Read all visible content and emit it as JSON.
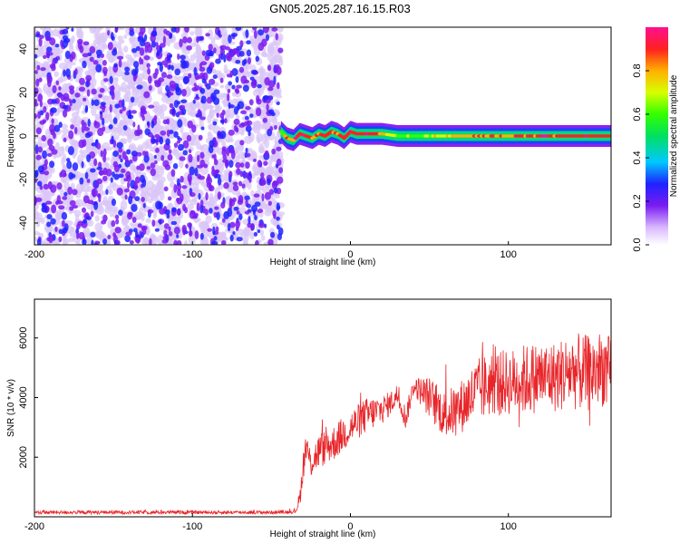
{
  "title": "GN05.2025.287.16.15.R03",
  "chart_data": [
    {
      "type": "heatmap",
      "xlabel": "Height of straight line (km)",
      "ylabel": "Frequency (Hz)",
      "xlim": [
        -200,
        165
      ],
      "ylim": [
        -50,
        50
      ],
      "xticks": [
        "-200",
        "-100",
        "0",
        "100"
      ],
      "yticks": [
        "40",
        "20",
        "0",
        "-20",
        "-40"
      ],
      "colorbar": {
        "label": "Normalized spectral amplitude",
        "range": [
          0.0,
          1.0
        ],
        "ticks": [
          "0.0",
          "0.2",
          "0.4",
          "0.6",
          "0.8"
        ]
      },
      "noise_region_x": [
        -200,
        -44
      ],
      "signal_start_x": -44,
      "signal_track": {
        "x": [
          -44,
          -40,
          -36,
          -32,
          -28,
          -24,
          -20,
          -16,
          -12,
          -8,
          -4,
          0,
          4,
          8,
          12,
          16,
          20,
          30,
          40,
          60,
          80,
          100,
          120,
          140,
          165
        ],
        "freq": [
          2,
          -1,
          -2,
          1,
          0,
          -1,
          1,
          0,
          2,
          1,
          -1,
          2,
          1,
          1,
          1,
          1,
          1,
          0,
          0,
          0,
          0,
          0,
          0,
          0,
          0
        ],
        "amplitude": [
          0.55,
          0.8,
          0.85,
          0.9,
          0.85,
          0.8,
          0.85,
          0.85,
          0.8,
          0.8,
          0.85,
          0.9,
          0.85,
          0.85,
          0.9,
          0.85,
          0.75,
          0.6,
          0.55,
          0.7,
          0.8,
          0.8,
          0.85,
          0.85,
          0.85
        ]
      }
    },
    {
      "type": "line",
      "xlabel": "Height of straight line (km)",
      "ylabel": "SNR (10 * v/v)",
      "xlim": [
        -200,
        165
      ],
      "ylim": [
        0,
        7300
      ],
      "xticks": [
        "-200",
        "-100",
        "0",
        "100"
      ],
      "yticks": [
        "6000",
        "4000",
        "2000"
      ],
      "series": [
        {
          "name": "SNR",
          "color": "#e8262a",
          "x": [
            -200,
            -150,
            -100,
            -50,
            -35,
            -32,
            -30,
            -28,
            -25,
            -20,
            -10,
            0,
            10,
            20,
            25,
            30,
            35,
            40,
            50,
            60,
            70,
            80,
            90,
            100,
            110,
            120,
            130,
            140,
            150,
            160,
            165
          ],
          "base": [
            150,
            150,
            150,
            150,
            170,
            600,
            1700,
            2300,
            1800,
            2200,
            2500,
            3000,
            3400,
            3600,
            3800,
            4100,
            3300,
            4400,
            4000,
            3400,
            3700,
            4200,
            4500,
            4500,
            4600,
            4700,
            4700,
            4900,
            4800,
            5000,
            4700
          ],
          "spread": [
            60,
            60,
            60,
            60,
            60,
            300,
            500,
            500,
            500,
            600,
            600,
            600,
            600,
            500,
            400,
            400,
            400,
            300,
            700,
            800,
            900,
            1100,
            1100,
            1100,
            1200,
            1200,
            1200,
            1300,
            1300,
            1300,
            1300
          ]
        }
      ]
    }
  ]
}
